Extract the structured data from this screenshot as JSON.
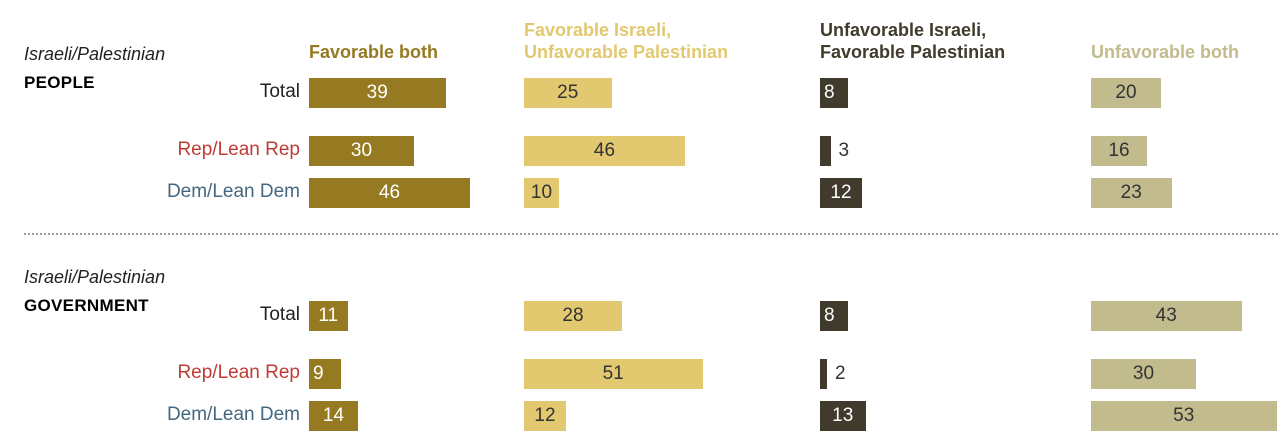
{
  "colors": {
    "favorable_both": "#967A21",
    "fav_isr_unfav_pal": "#E2C86E",
    "unfav_isr_fav_pal": "#403B2C",
    "unfavorable_both": "#C2BB8E",
    "rep": "#BF3B35",
    "dem": "#44687F",
    "neutral": "#222222"
  },
  "chart_data": {
    "type": "bar",
    "columns": [
      {
        "label": "Favorable both",
        "label_lines": [
          "Favorable both"
        ]
      },
      {
        "label": "Favorable Israeli, Unfavorable Palestinian",
        "label_lines": [
          "Favorable Israeli,",
          "Unfavorable Palestinian"
        ]
      },
      {
        "label": "Unfavorable Israeli, Favorable Palestinian",
        "label_lines": [
          "Unfavorable Israeli,",
          "Favorable Palestinian"
        ]
      },
      {
        "label": "Unfavorable both",
        "label_lines": [
          "Unfavorable both"
        ]
      }
    ],
    "panels": [
      {
        "title": "Israeli/Palestinian",
        "subtitle": "PEOPLE",
        "rows": [
          {
            "label": "Total",
            "group": "total",
            "values": [
              39,
              25,
              8,
              20
            ]
          },
          {
            "label": "Rep/Lean Rep",
            "group": "rep",
            "values": [
              30,
              46,
              3,
              16
            ]
          },
          {
            "label": "Dem/Lean Dem",
            "group": "dem",
            "values": [
              46,
              10,
              12,
              23
            ]
          }
        ]
      },
      {
        "title": "Israeli/Palestinian",
        "subtitle": "GOVERNMENT",
        "rows": [
          {
            "label": "Total",
            "group": "total",
            "values": [
              11,
              28,
              8,
              43
            ]
          },
          {
            "label": "Rep/Lean Rep",
            "group": "rep",
            "values": [
              9,
              51,
              2,
              30
            ]
          },
          {
            "label": "Dem/Lean Dem",
            "group": "dem",
            "values": [
              14,
              12,
              13,
              53
            ]
          }
        ]
      }
    ]
  }
}
